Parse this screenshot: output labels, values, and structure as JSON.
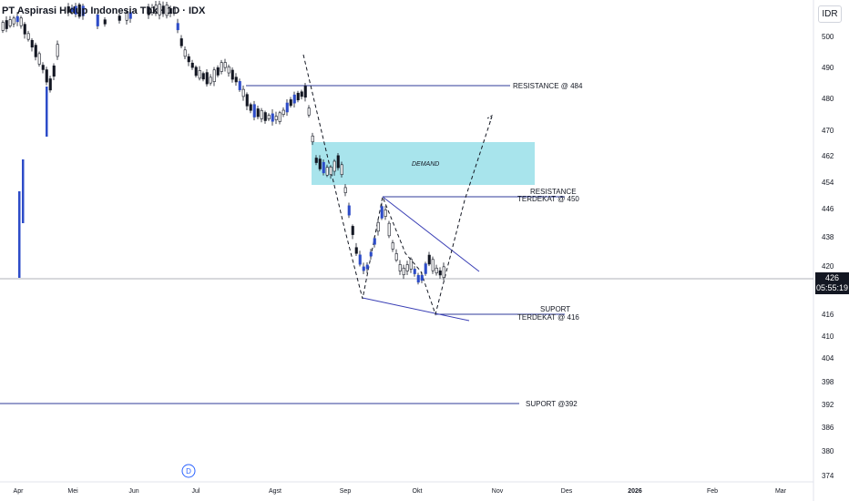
{
  "header": {
    "title": "PT Aspirasi Hidup Indonesia Tbk · 1D · IDX",
    "currency": "IDR"
  },
  "last_price": {
    "value": "426",
    "countdown": "05:55:19"
  },
  "colors": {
    "up": "#ffffff",
    "down": "#131722",
    "blue_candle": "#2d4cc8",
    "line": "#2f3b9a",
    "zone": "#a8e4ec"
  },
  "annotations": {
    "resistance_484": "RESISTANCE @ 484",
    "resistance_450_a": "RESISTANCE",
    "resistance_450_b": "TERDEKAT @ 450",
    "demand": "DEMAND",
    "support_416_a": "SUPORT",
    "support_416_b": "TERDEKAT @ 416",
    "support_392": "SUPORT @392"
  },
  "event_marker": "D",
  "chart_data": {
    "type": "candlestick",
    "title": "PT Aspirasi Hidup Indonesia Tbk · 1D · IDX",
    "y_ticks": [
      500,
      490,
      480,
      470,
      462,
      454,
      446,
      438,
      420,
      416,
      410,
      404,
      398,
      392,
      386,
      380,
      374
    ],
    "x_ticks": [
      "Apr",
      "Mei",
      "Jun",
      "Jul",
      "Agst",
      "Sep",
      "Okt",
      "Nov",
      "Des",
      "2026",
      "Feb",
      "Mar"
    ],
    "levels": [
      {
        "label": "RESISTANCE @ 484",
        "value": 484
      },
      {
        "label": "TERDEKAT @ 450",
        "value": 450
      },
      {
        "label": "TERDEKAT @ 416",
        "value": 416
      },
      {
        "label": "SUPORT @392",
        "value": 392
      }
    ],
    "demand_zone": {
      "low": 453,
      "high": 465
    },
    "last_price": 426
  }
}
